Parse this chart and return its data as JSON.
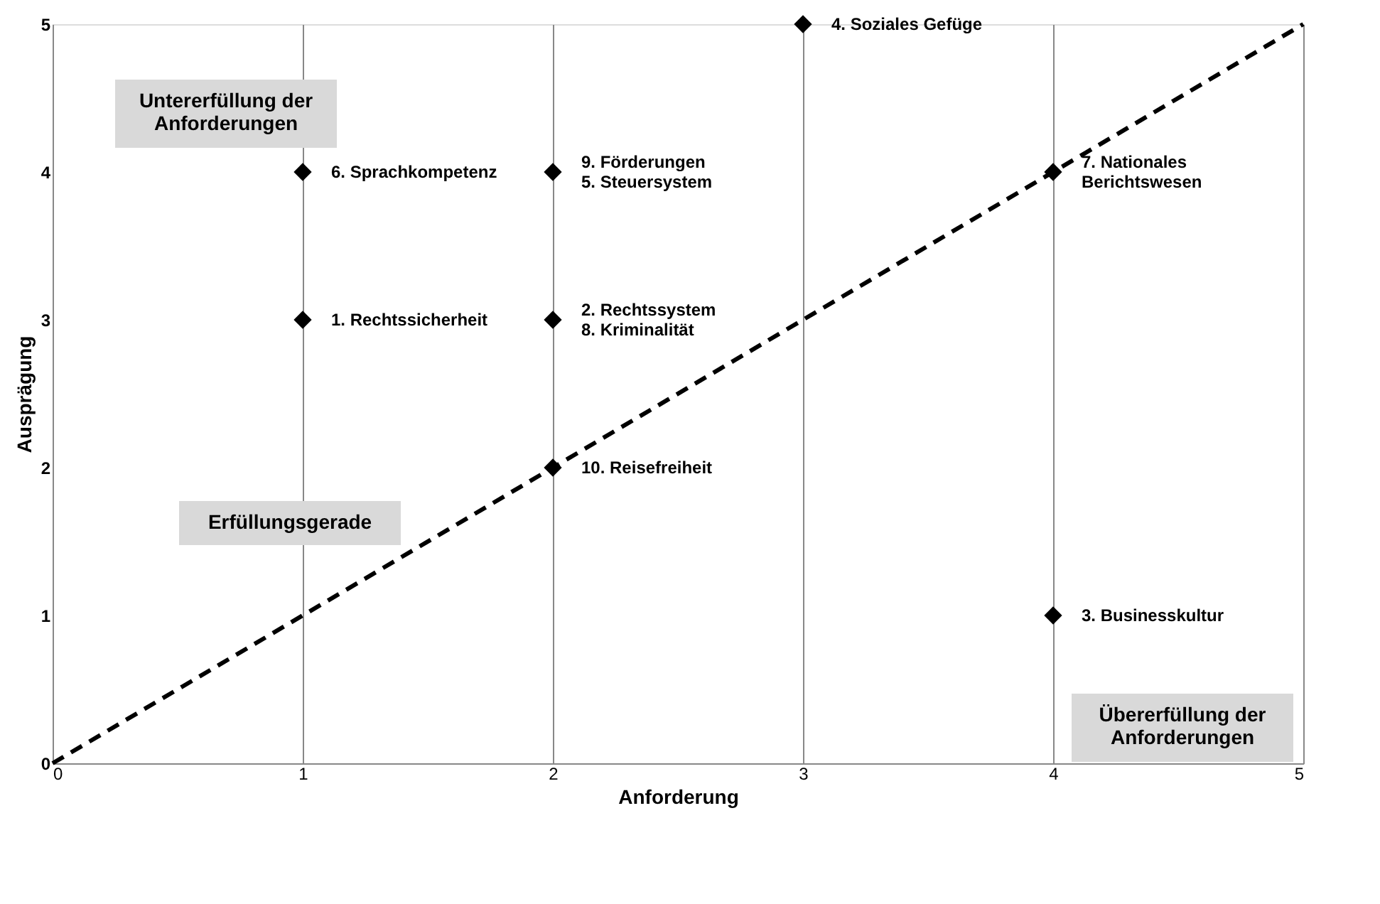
{
  "chart_data": {
    "type": "scatter",
    "xlabel": "Anforderung",
    "ylabel": "Ausprägung",
    "xlim": [
      0,
      5
    ],
    "ylim": [
      0,
      5
    ],
    "xticks": [
      0,
      1,
      2,
      3,
      4,
      5
    ],
    "yticks": [
      0,
      1,
      2,
      3,
      4,
      5
    ],
    "grid": "x",
    "series": [
      {
        "type": "scatter",
        "x": [
          1,
          2,
          3,
          4,
          1,
          2,
          2,
          4
        ],
        "values": [
          4,
          4,
          5,
          4,
          3,
          3,
          2,
          1
        ],
        "color": "#000000",
        "marker": "diamond"
      },
      {
        "type": "line",
        "x": [
          0,
          5
        ],
        "values": [
          0,
          5
        ],
        "color": "#000000",
        "line_style": "dashed",
        "marker": "none"
      }
    ],
    "annotations": [
      {
        "text": "6. Sprachkompetenz",
        "x": 1,
        "y": 4
      },
      {
        "text": "9. Förderungen\n5. Steuersystem",
        "x": 2,
        "y": 4
      },
      {
        "text": "4. Soziales Gefüge",
        "x": 3,
        "y": 5
      },
      {
        "text": "7. Nationales\nBerichtswesen",
        "x": 4,
        "y": 4
      },
      {
        "text": "1. Rechtssicherheit",
        "x": 1,
        "y": 3
      },
      {
        "text": "2. Rechtssystem\n8. Kriminalität",
        "x": 2,
        "y": 3
      },
      {
        "text": "10. Reisefreiheit",
        "x": 2,
        "y": 2
      },
      {
        "text": "3. Businesskultur",
        "x": 4,
        "y": 1
      },
      "Untererfüllung der\nAnforderungen",
      "Erfüllungsgerade",
      "Übererfüllung der\nAnforderungen"
    ]
  }
}
